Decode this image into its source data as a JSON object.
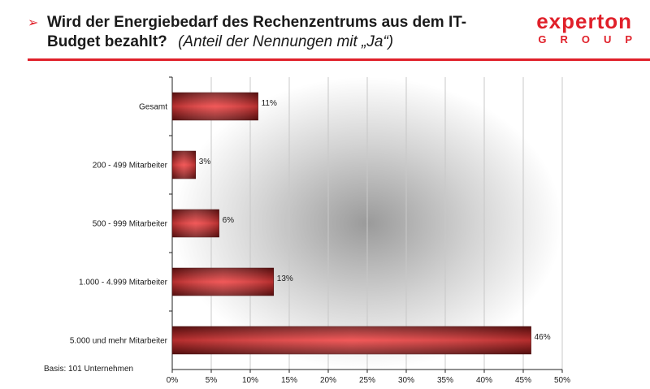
{
  "header": {
    "bullet": "➢",
    "title_line1": "Wird der Energiebedarf des Rechenzentrums aus dem IT-",
    "title_line2": "Budget bezahlt?",
    "title_note": "(Anteil der Nennungen mit „Ja“)"
  },
  "logo": {
    "main": "experton",
    "sub": "GROUP"
  },
  "footer": {
    "basis": "Basis: 101 Unternehmen"
  },
  "colors": {
    "accent": "#e0202a",
    "bar_dark": "#6e1212",
    "bar_light": "#f03c3c"
  },
  "chart_data": {
    "type": "bar",
    "orientation": "horizontal",
    "categories": [
      "Gesamt",
      "200 - 499 Mitarbeiter",
      "500 - 999 Mitarbeiter",
      "1.000 - 4.999 Mitarbeiter",
      "5.000 und mehr Mitarbeiter"
    ],
    "values": [
      11,
      3,
      6,
      13,
      46
    ],
    "value_labels": [
      "11%",
      "3%",
      "6%",
      "13%",
      "46%"
    ],
    "xlim": [
      0,
      50
    ],
    "xticks": [
      0,
      5,
      10,
      15,
      20,
      25,
      30,
      35,
      40,
      45,
      50
    ],
    "xtick_labels": [
      "0%",
      "5%",
      "10%",
      "15%",
      "20%",
      "25%",
      "30%",
      "35%",
      "40%",
      "45%",
      "50%"
    ],
    "grid": true
  }
}
